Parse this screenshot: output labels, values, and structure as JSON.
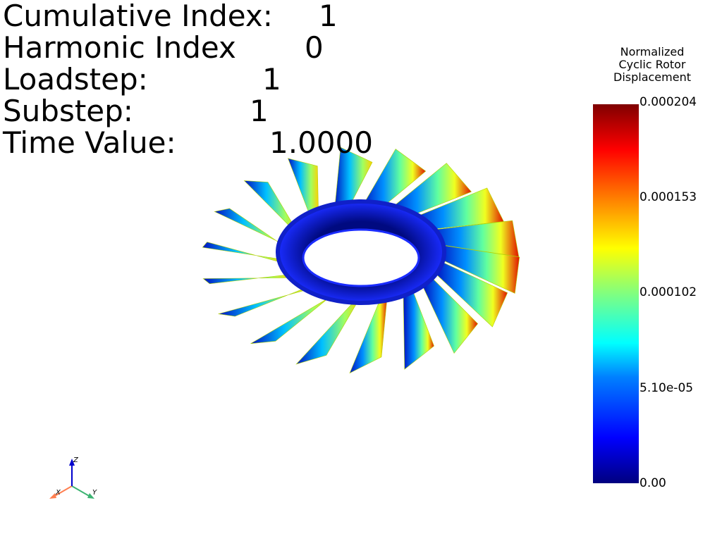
{
  "info": {
    "cumulative_label": "Cumulative Index:",
    "cumulative_value": "1",
    "harmonic_label": "Harmonic Index",
    "harmonic_value": "0",
    "loadstep_label": "Loadstep:",
    "loadstep_value": "1",
    "substep_label": "Substep:",
    "substep_value": "1",
    "time_label": "Time Value:",
    "time_value": "1.0000"
  },
  "colorbar": {
    "title_line1": "Normalized",
    "title_line2": "Cyclic Rotor",
    "title_line3": "Displacement",
    "ticks": [
      "0.000204",
      "0.000153",
      "0.000102",
      "5.10e-05",
      "0.00"
    ],
    "min": 0.0,
    "max": 0.000204,
    "colormap": [
      "#00007f",
      "#0000ff",
      "#0080ff",
      "#00ffff",
      "#80ff80",
      "#ffff00",
      "#ff8000",
      "#ff0000",
      "#7f0000"
    ]
  },
  "axes": {
    "x_label": "X",
    "y_label": "Y",
    "z_label": "Z",
    "x_color": "#ff7f50",
    "y_color": "#3cb371",
    "z_color": "#0000cd"
  },
  "rotor": {
    "blade_count": 18,
    "hub_color": "#1020c8"
  }
}
